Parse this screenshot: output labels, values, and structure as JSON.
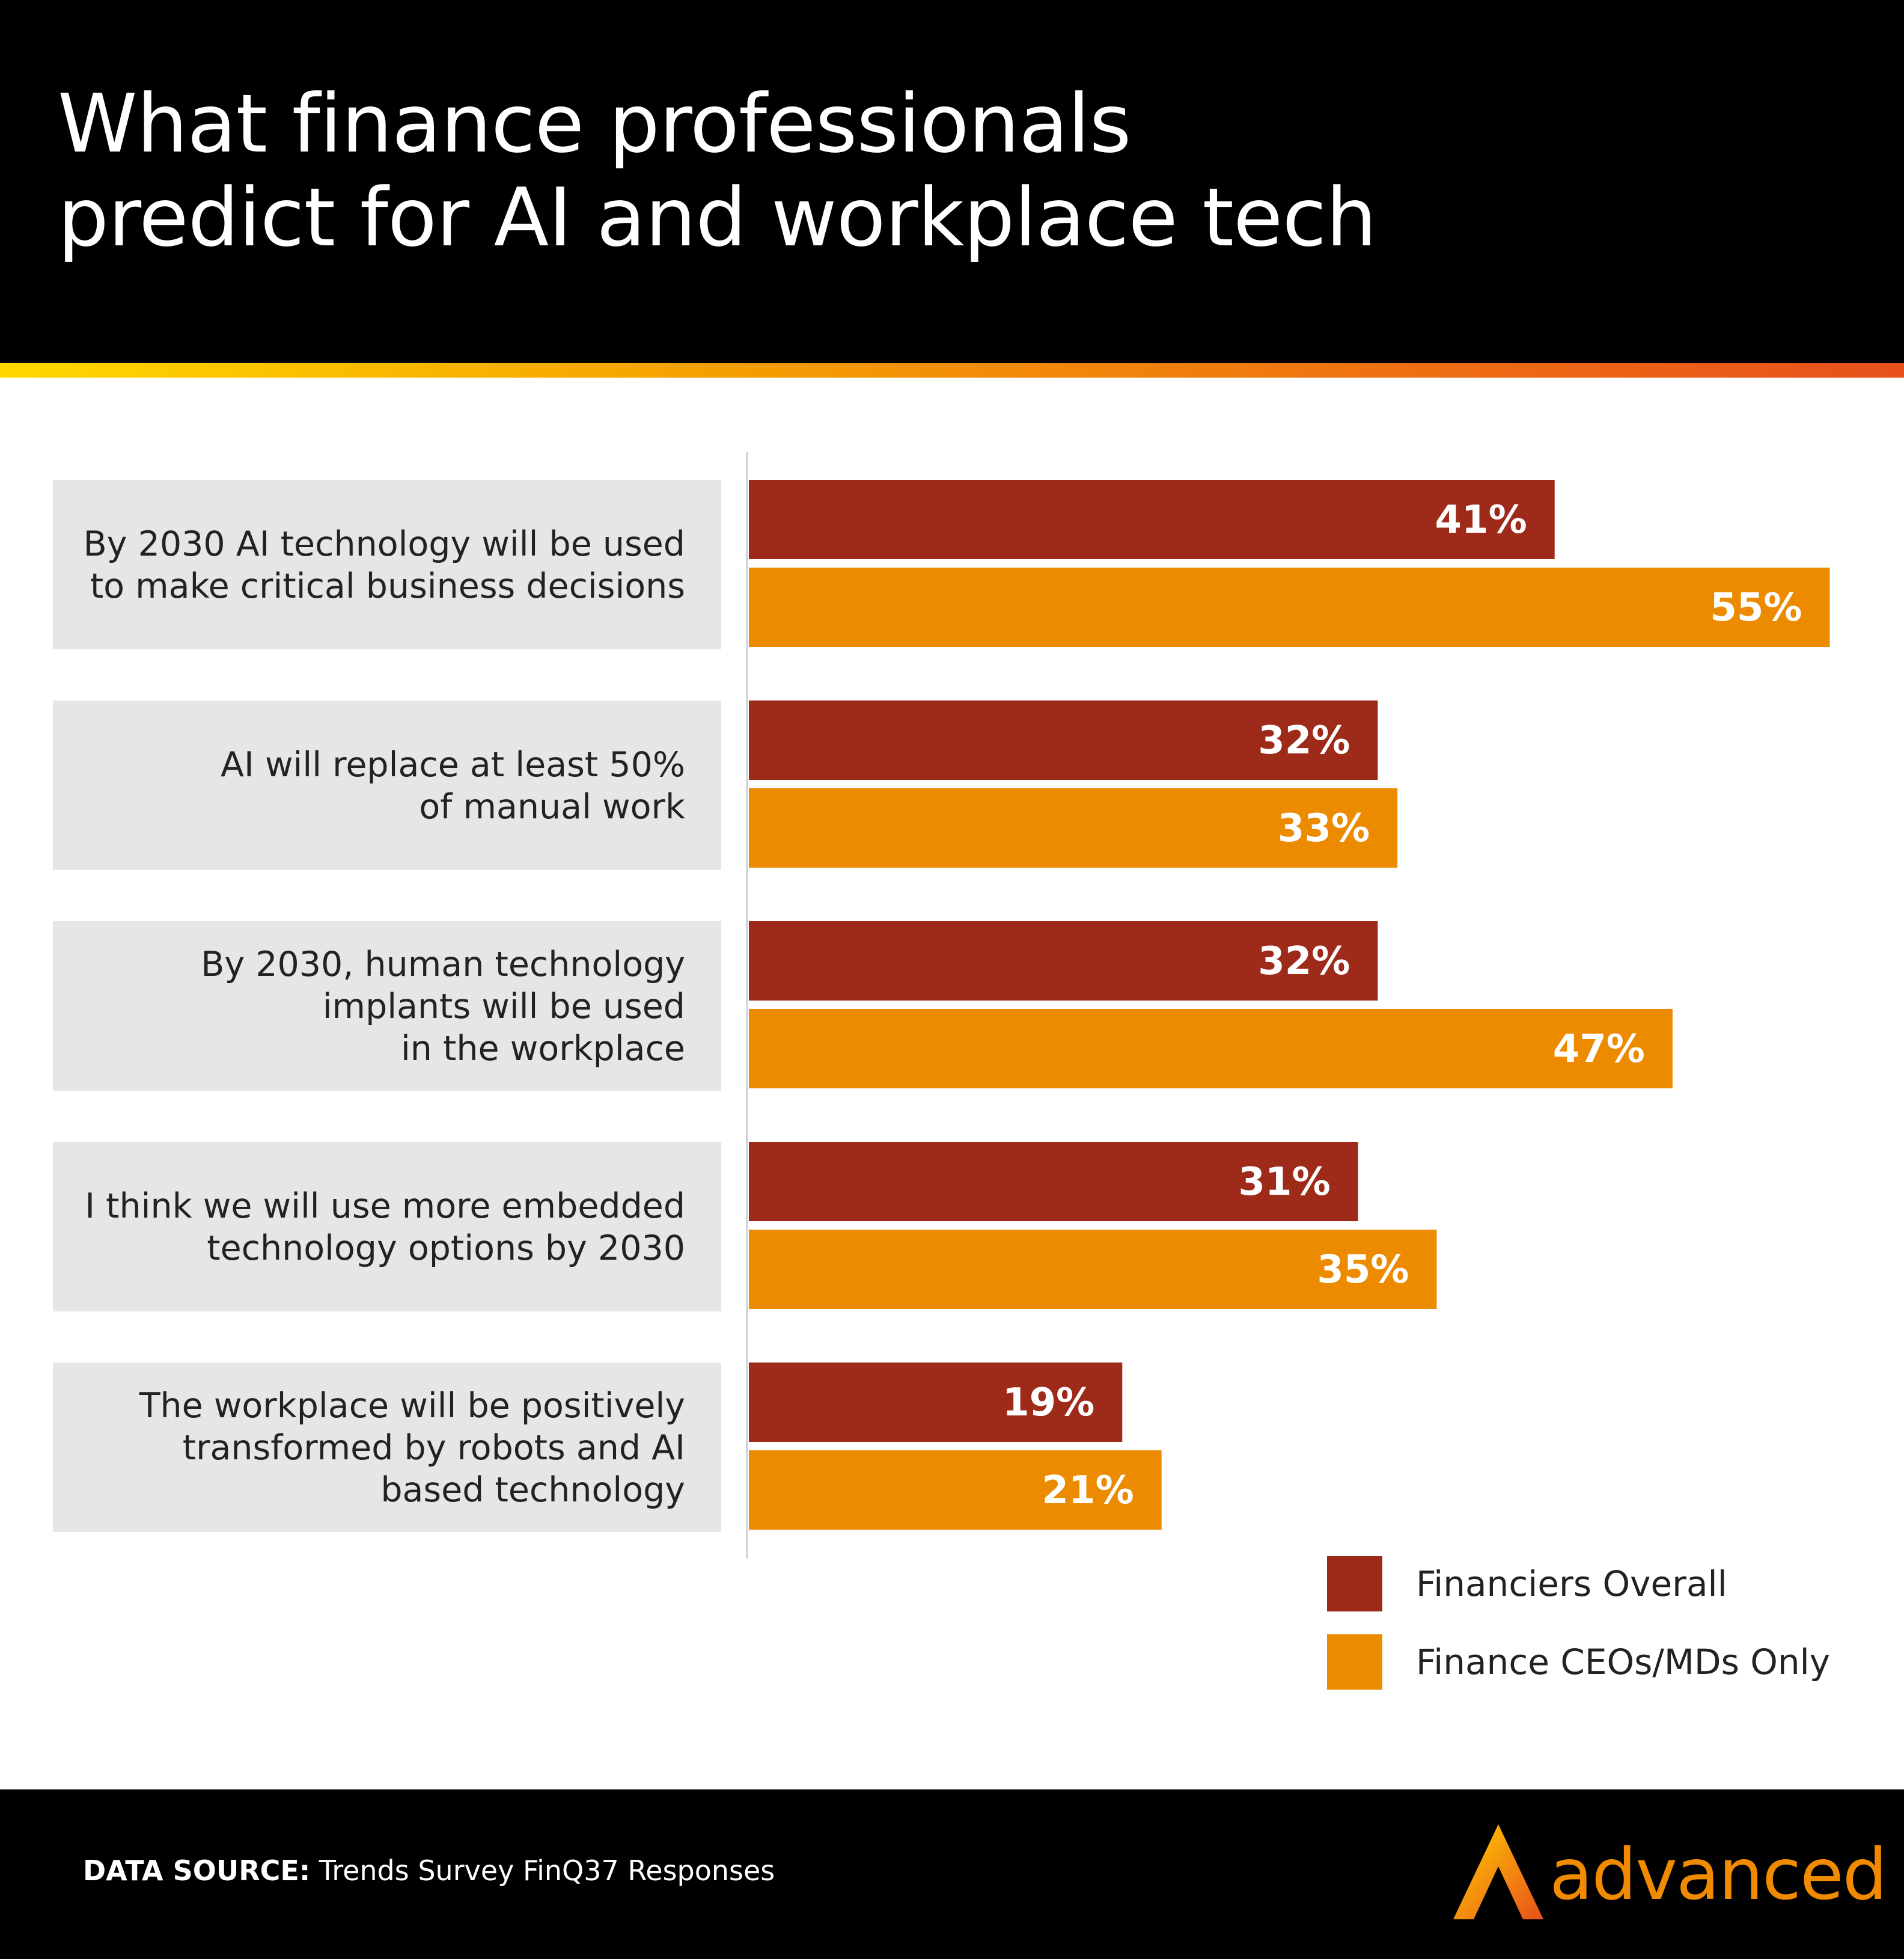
{
  "header": {
    "title_line1": "What finance professionals",
    "title_line2": "predict for AI and workplace tech"
  },
  "colors": {
    "background_header": "#000000",
    "series_overall": "#9e2a1a",
    "series_ceo": "#ec8a00",
    "label_box": "#e6e6e6",
    "logo": "#f08a00"
  },
  "chart_data": {
    "type": "bar",
    "orientation": "horizontal",
    "categories": [
      [
        "By 2030 AI technology will be used",
        "to make critical business decisions"
      ],
      [
        "AI will replace at least 50%",
        "of manual work"
      ],
      [
        "By 2030, human technology",
        "implants will be used",
        "in the workplace"
      ],
      [
        "I think we will use more embedded",
        "technology options by 2030"
      ],
      [
        "The workplace will be positively",
        "transformed by robots and AI",
        "based technology"
      ]
    ],
    "series": [
      {
        "name": "Financiers Overall",
        "values": [
          41,
          32,
          32,
          31,
          19
        ],
        "labels": [
          "41%",
          "32%",
          "32%",
          "31%",
          "19%"
        ]
      },
      {
        "name": "Finance CEOs/MDs Only",
        "values": [
          55,
          33,
          47,
          35,
          21
        ],
        "labels": [
          "55%",
          "33%",
          "47%",
          "35%",
          "21%"
        ]
      }
    ],
    "unit": "%",
    "legend_position": "bottom-right"
  },
  "footer": {
    "source_label": "DATA SOURCE:",
    "source_text": " Trends Survey FinQ37 Responses",
    "logo_text": "advanced"
  }
}
